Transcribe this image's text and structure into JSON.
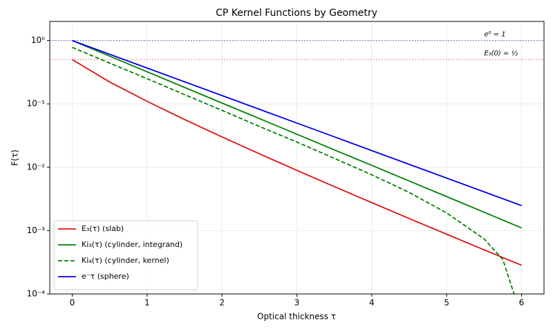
{
  "chart_data": {
    "type": "line",
    "title": "CP Kernel Functions by Geometry",
    "x_label": "Optical thickness τ",
    "y_label": "F(τ)",
    "x": [
      0,
      0.5,
      1,
      1.5,
      2,
      2.5,
      3,
      3.5,
      4,
      4.5,
      5,
      5.5,
      6
    ],
    "series": [
      {
        "name": "E₃(τ) (slab)",
        "color": "#e01010",
        "dashed": false,
        "values": [
          0.5,
          0.2216,
          0.1097,
          0.0567,
          0.0301,
          0.0163,
          0.00893,
          0.00495,
          0.00276,
          0.00155,
          0.000877,
          0.000497,
          0.000284
        ]
      },
      {
        "name": "Ki₃(τ) (cylinder, integrand)",
        "color": "#008000",
        "dashed": false,
        "values": [
          1,
          0.567,
          0.321,
          0.182,
          0.103,
          0.0586,
          0.0332,
          0.0188,
          0.0107,
          0.00606,
          0.00344,
          0.00195,
          0.0011
        ]
      },
      {
        "name": "Ki₄(τ) (cylinder, kernel)",
        "color": "#008000",
        "dashed": true,
        "x": [
          0,
          0.5,
          1,
          1.5,
          2,
          2.5,
          3,
          3.5,
          4,
          4.5,
          5,
          5.5,
          5.75,
          5.9
        ],
        "values": [
          0.78,
          0.44,
          0.25,
          0.14,
          0.079,
          0.044,
          0.025,
          0.0138,
          0.0076,
          0.004,
          0.0019,
          0.00074,
          0.00035,
          0.0001
        ]
      },
      {
        "name": "e⁻τ (sphere)",
        "color": "#0000ee",
        "dashed": false,
        "values": [
          1,
          0.6065,
          0.3679,
          0.2231,
          0.1353,
          0.0821,
          0.0498,
          0.0302,
          0.0183,
          0.0111,
          0.00674,
          0.00409,
          0.00248
        ]
      }
    ],
    "reference_lines": [
      {
        "value": 1,
        "color": "#0000ee",
        "label": "e⁰ = 1",
        "label_x": 5.5
      },
      {
        "value": 0.5,
        "color": "#e01010",
        "label": "E₃(0) = ½",
        "label_x": 5.5
      }
    ],
    "xlim": [
      -0.3,
      6.3
    ],
    "xticks": [
      0,
      1,
      2,
      3,
      4,
      5,
      6
    ],
    "ylim": [
      0.0001,
      2
    ],
    "y_log": true,
    "yticks": [
      {
        "value": 0.0001,
        "label": "10⁻⁴"
      },
      {
        "value": 0.001,
        "label": "10⁻³"
      },
      {
        "value": 0.01,
        "label": "10⁻²"
      },
      {
        "value": 0.1,
        "label": "10⁻¹"
      },
      {
        "value": 1,
        "label": "10⁰"
      }
    ],
    "grid": true,
    "legend": "lower left"
  }
}
